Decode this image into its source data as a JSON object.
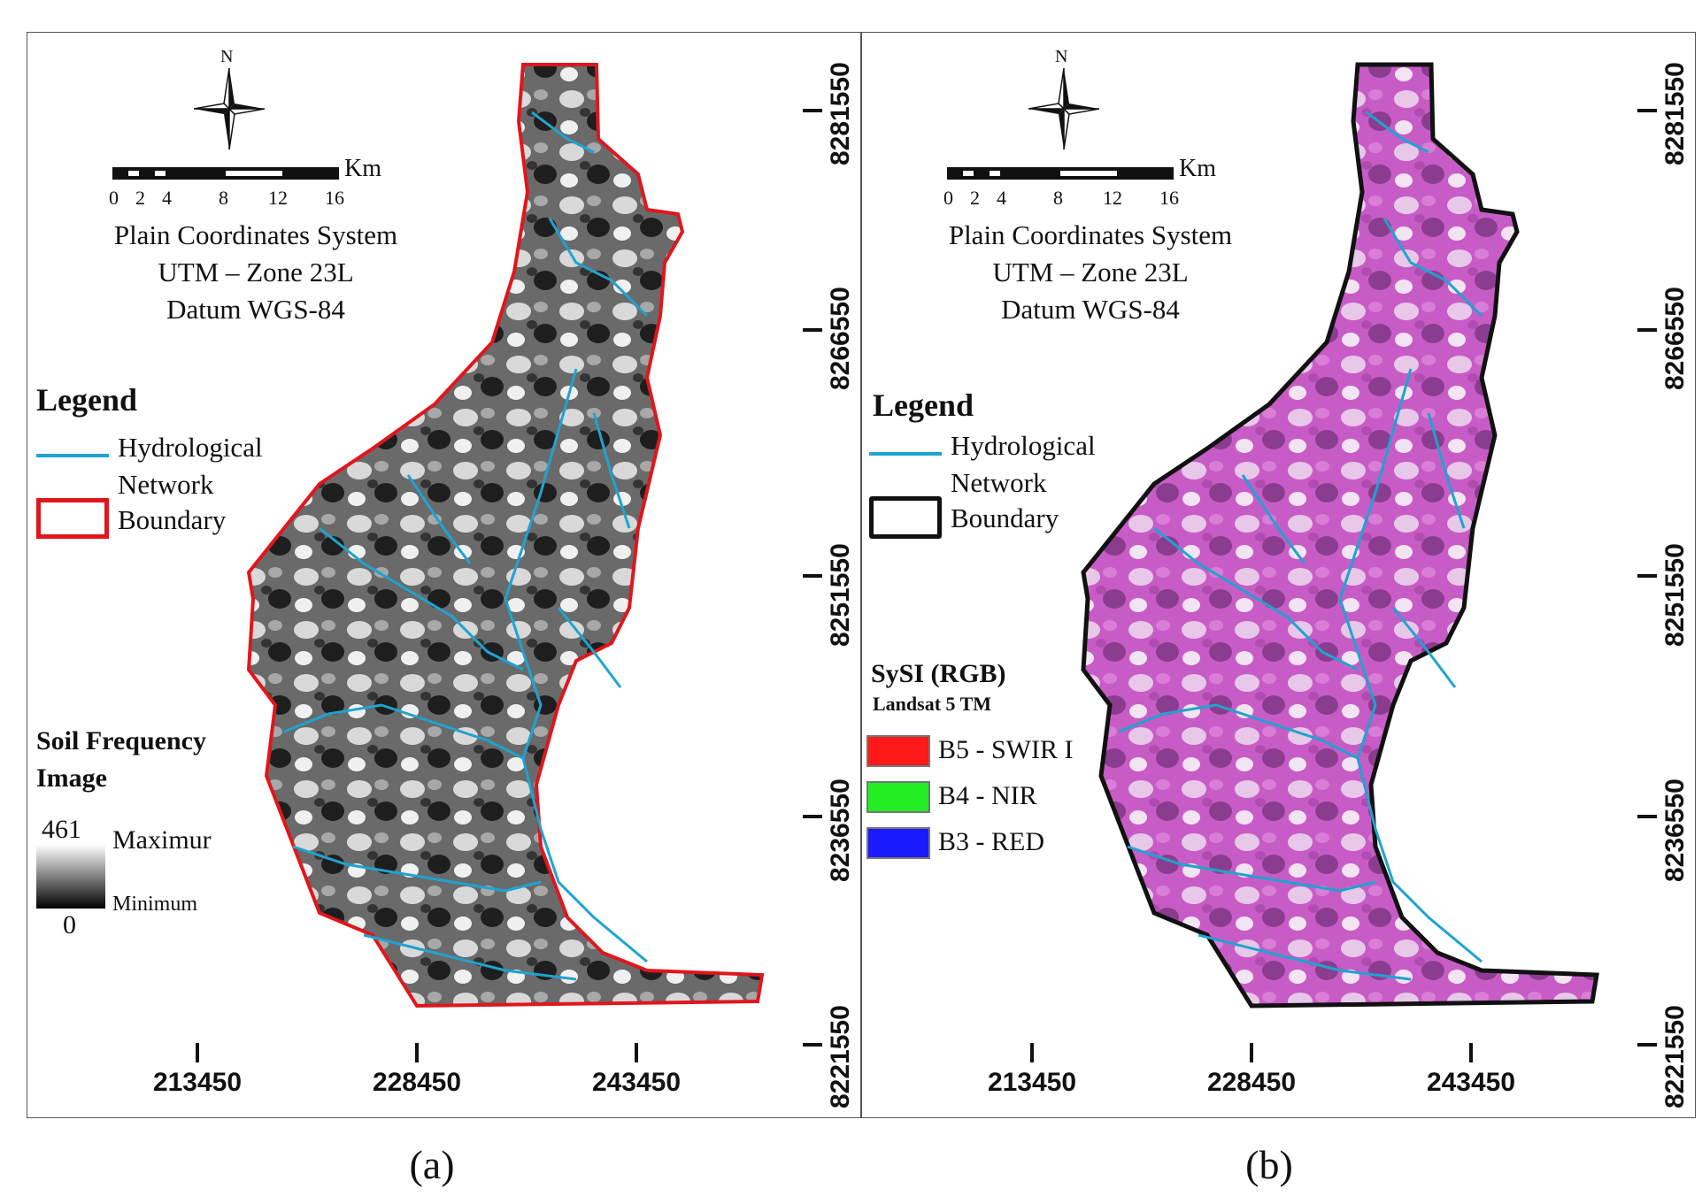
{
  "panels": [
    {
      "label": "(a)",
      "north": "N",
      "scale": {
        "ticks": [
          "0",
          "2",
          "4",
          "8",
          "12",
          "16"
        ],
        "unit": "Km"
      },
      "coord_system": [
        "Plain Coordinates System",
        "UTM – Zone 23L",
        "Datum WGS-84"
      ],
      "legend": {
        "title": "Legend",
        "items": [
          {
            "label": "Hydrological Network",
            "color": "#1fa3d0"
          },
          {
            "label": "Boundary",
            "color": "#e0161d"
          }
        ]
      },
      "raster_legend": {
        "title": "Soil Frequency Image",
        "max_value": "461",
        "max_label": "Maximur",
        "min_value": "0",
        "min_label": "Minimum"
      },
      "x_ticks": [
        "213450",
        "228450",
        "243450"
      ],
      "y_ticks": [
        "8281550",
        "8266550",
        "8251550",
        "8236550",
        "8221550"
      ]
    },
    {
      "label": "(b)",
      "north": "N",
      "scale": {
        "ticks": [
          "0",
          "2",
          "4",
          "8",
          "12",
          "16"
        ],
        "unit": "Km"
      },
      "coord_system": [
        "Plain Coordinates System",
        "UTM – Zone 23L",
        "Datum WGS-84"
      ],
      "legend": {
        "title": "Legend",
        "items": [
          {
            "label": "Hydrological Network",
            "color": "#1fa3d0"
          },
          {
            "label": "Boundary",
            "color": "#111111"
          }
        ]
      },
      "rgb_legend": {
        "title": "SySI (RGB)",
        "subtitle": "Landsat 5 TM",
        "bands": [
          {
            "label": "B5 - SWIR I",
            "color": "#ff1a1a"
          },
          {
            "label": "B4 - NIR",
            "color": "#22ee22"
          },
          {
            "label": "B3 - RED",
            "color": "#1a1aff"
          }
        ]
      },
      "x_ticks": [
        "213450",
        "228450",
        "243450"
      ],
      "y_ticks": [
        "8281550",
        "8266550",
        "8251550",
        "8236550",
        "8221550"
      ]
    }
  ]
}
